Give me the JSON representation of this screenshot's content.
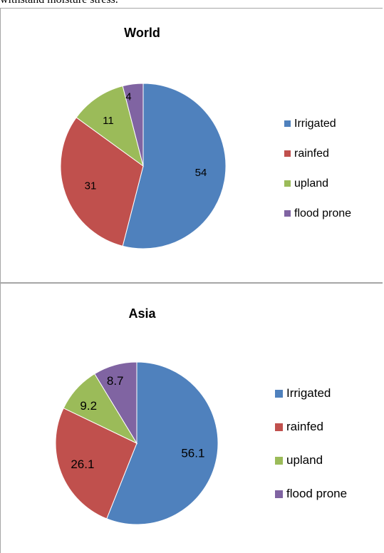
{
  "page": {
    "text_above": "withstand moisture stress."
  },
  "colors": {
    "Irrigated": "#4f81bd",
    "rainfed": "#c0504d",
    "upland": "#9bbb59",
    "flood prone": "#8064a2"
  },
  "chart_data": [
    {
      "type": "pie",
      "title": "World",
      "categories": [
        "Irrigated",
        "rainfed",
        "upland",
        "flood prone"
      ],
      "values": [
        54,
        31,
        11,
        4
      ],
      "labels": [
        "54",
        "31",
        "11",
        "4"
      ],
      "legend": "right"
    },
    {
      "type": "pie",
      "title": "Asia",
      "categories": [
        "Irrigated",
        "rainfed",
        "upland",
        "flood prone"
      ],
      "values": [
        56.1,
        26.1,
        9.2,
        8.7
      ],
      "labels": [
        "56.1",
        "26.1",
        "9.2",
        "8.7"
      ],
      "legend": "right"
    }
  ]
}
